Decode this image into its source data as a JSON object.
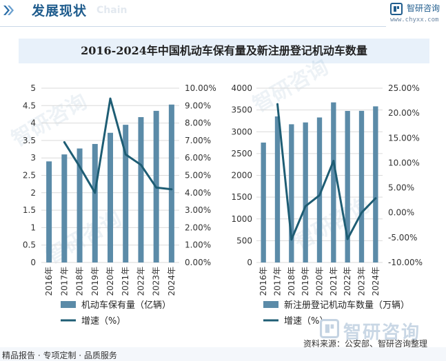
{
  "header": {
    "title": "发展现状",
    "subtitle": "Chain"
  },
  "brand": {
    "name": "智研咨询",
    "url": "www.chyxx.com",
    "watermark": "智研咨询"
  },
  "colors": {
    "bar": "#5b8ba8",
    "line": "#1e5d74",
    "title_bg": "#e8f1fa",
    "brand": "#1f5c8d"
  },
  "chart_title": "2016-2024年中国机动车保有量及新注册登记机动车数量",
  "chart_data": [
    {
      "type": "bar",
      "categories": [
        "2016年",
        "2017年",
        "2018年",
        "2019年",
        "2020年",
        "2021年",
        "2022年",
        "2023年",
        "2024年"
      ],
      "series": [
        {
          "name": "机动车保有量（亿辆）",
          "type": "bar",
          "axis": "left",
          "values": [
            2.9,
            3.1,
            3.27,
            3.4,
            3.72,
            3.95,
            4.17,
            4.35,
            4.53
          ]
        },
        {
          "name": "增速（%）",
          "type": "line",
          "axis": "right",
          "values": [
            null,
            6.9,
            5.5,
            4.0,
            9.4,
            6.2,
            5.6,
            4.3,
            4.2
          ]
        }
      ],
      "ylim_left": [
        0,
        5
      ],
      "yticks_left": [
        "0",
        "0.5",
        "1",
        "1.5",
        "2",
        "2.5",
        "3",
        "3.5",
        "4",
        "4.5",
        "5"
      ],
      "ylim_right": [
        0,
        10
      ],
      "yticks_right": [
        "0.00%",
        "1.00%",
        "2.00%",
        "3.00%",
        "4.00%",
        "5.00%",
        "6.00%",
        "7.00%",
        "8.00%",
        "9.00%",
        "10.00%"
      ],
      "legend": "bottom",
      "grid": true
    },
    {
      "type": "bar",
      "categories": [
        "2016年",
        "2017年",
        "2018年",
        "2019年",
        "2020年",
        "2021年",
        "2022年",
        "2023年",
        "2024年"
      ],
      "series": [
        {
          "name": "新注册登记机动车数量（万辆）",
          "type": "bar",
          "axis": "left",
          "values": [
            2752,
            3352,
            3172,
            3214,
            3328,
            3674,
            3478,
            3480,
            3583
          ]
        },
        {
          "name": "增速（%）",
          "type": "line",
          "axis": "right",
          "values": [
            null,
            21.8,
            -5.4,
            1.3,
            3.5,
            10.4,
            -5.3,
            0.0,
            2.9
          ]
        }
      ],
      "ylim_left": [
        0,
        4000
      ],
      "yticks_left": [
        "0",
        "500",
        "1000",
        "1500",
        "2000",
        "2500",
        "3000",
        "3500",
        "4000"
      ],
      "ylim_right": [
        -10,
        25
      ],
      "yticks_right": [
        "-10.00%",
        "-5.00%",
        "0.00%",
        "5.00%",
        "10.00%",
        "15.00%",
        "20.00%",
        "25.00%"
      ],
      "legend": "bottom",
      "grid": true
    }
  ],
  "source": "资料来源：公安部、智研咨询整理",
  "footer": {
    "left": "精品报告 · 专项定制 · 品质服务"
  }
}
